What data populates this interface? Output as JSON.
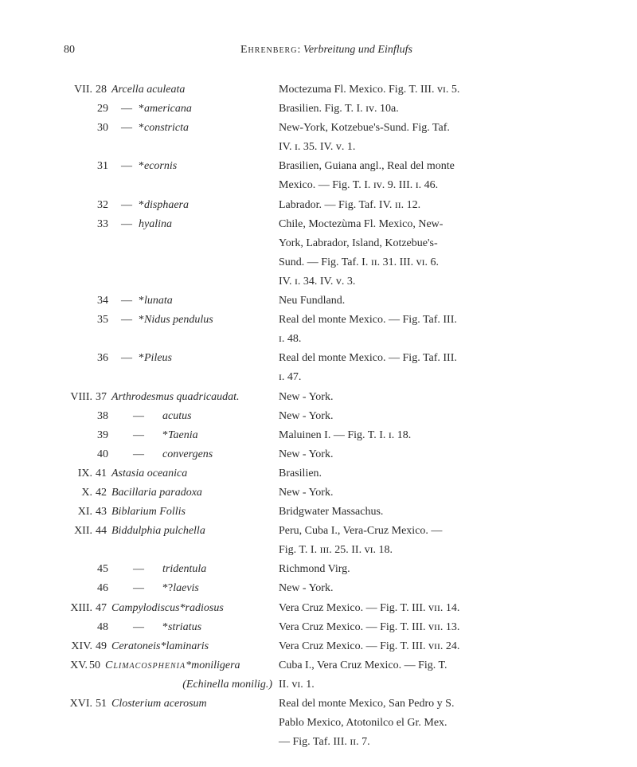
{
  "page_number": "80",
  "header_author": "Ehrenberg",
  "header_title": "Verbreitung und Einflufs",
  "entries": [
    {
      "roman": "VII.",
      "num": "28",
      "name": "Arcella aculeata",
      "desc": "Moctezuma Fl. Mexico. Fig. T. III. ᴠɪ. 5."
    },
    {
      "roman": "",
      "num": "29",
      "dash": "—",
      "pre": "*",
      "name": "americana",
      "desc": "Brasilien. Fig. T. I. ɪᴠ. 10a."
    },
    {
      "roman": "",
      "num": "30",
      "dash": "—",
      "pre": "*",
      "name": "constricta",
      "desc": "New-York, Kotzebue's-Sund. Fig. Taf."
    },
    {
      "cont": "IV. ɪ. 35. IV. ᴠ. 1."
    },
    {
      "roman": "",
      "num": "31",
      "dash": "—",
      "pre": "*",
      "name": "ecornis",
      "desc": "Brasilien, Guiana angl., Real del monte"
    },
    {
      "cont": "Mexico. — Fig. T. I. ɪᴠ. 9. III. ɪ. 46."
    },
    {
      "roman": "",
      "num": "32",
      "dash": "—",
      "pre": "*",
      "name": "disphaera",
      "desc": "Labrador. — Fig. Taf. IV. ɪɪ. 12."
    },
    {
      "roman": "",
      "num": "33",
      "dash": "—",
      "pre": "",
      "name": "hyalina",
      "desc": "Chile, Moctezùma Fl. Mexico, New-"
    },
    {
      "cont": "York, Labrador, Island, Kotzebue's-"
    },
    {
      "cont": "Sund. — Fig. Taf. I. ɪɪ. 31. III. ᴠɪ. 6."
    },
    {
      "cont": "IV. ɪ. 34. IV. ᴠ. 3."
    },
    {
      "roman": "",
      "num": "34",
      "dash": "—",
      "pre": "*",
      "name": "lunata",
      "desc": "Neu Fundland."
    },
    {
      "roman": "",
      "num": "35",
      "dash": "—",
      "pre": "*",
      "name": "Nidus pendulus",
      "desc": "Real del monte Mexico. — Fig. Taf. III."
    },
    {
      "cont": "ɪ. 48."
    },
    {
      "roman": "",
      "num": "36",
      "dash": "—",
      "pre": "*",
      "name": "Pileus",
      "desc": "Real del monte Mexico. — Fig. Taf. III."
    },
    {
      "cont": "ɪ. 47."
    },
    {
      "roman": "VIII.",
      "num": "37",
      "name": "Arthrodesmus quadricaudat.",
      "desc": "New - York.",
      "compact": true
    },
    {
      "roman": "",
      "num": "38",
      "dash2": "—",
      "pre": "",
      "name": "acutus",
      "desc": "New - York."
    },
    {
      "roman": "",
      "num": "39",
      "dash2": "—",
      "pre": "*",
      "name": "Taenia",
      "desc": "Maluinen I. — Fig. T. I. ɪ. 18."
    },
    {
      "roman": "",
      "num": "40",
      "dash2": "—",
      "pre": "",
      "name": "convergens",
      "desc": "New - York."
    },
    {
      "roman": "IX.",
      "num": "41",
      "name": "Astasia oceanica",
      "desc": "Brasilien."
    },
    {
      "roman": "X.",
      "num": "42",
      "name": "Bacillaria paradoxa",
      "desc": "New - York."
    },
    {
      "roman": "XI.",
      "num": "43",
      "name": "Biblarium Follis",
      "desc": "Bridgwater Massachus."
    },
    {
      "roman": "XII.",
      "num": "44",
      "name": "Biddulphia pulchella",
      "desc": "Peru, Cuba I., Vera-Cruz Mexico. —"
    },
    {
      "cont": "Fig. T. I. ɪɪɪ. 25. II. ᴠɪ. 18."
    },
    {
      "roman": "",
      "num": "45",
      "dash2": "—",
      "pre": "",
      "name": "tridentula",
      "desc": "Richmond Virg."
    },
    {
      "roman": "",
      "num": "46",
      "dash2": "—",
      "pre": "*?",
      "name": "laevis",
      "desc": "New - York."
    },
    {
      "roman": "XIII.",
      "num": "47",
      "name": "Campylodiscus*radiosus",
      "desc": "Vera Cruz Mexico. — Fig. T. III. ᴠɪɪ. 14.",
      "compact": true
    },
    {
      "roman": "",
      "num": "48",
      "dash2": "—",
      "pre": "*",
      "name": "striatus",
      "desc": "Vera Cruz Mexico. — Fig. T. III. ᴠɪɪ. 13."
    },
    {
      "roman": "XIV.",
      "num": "49",
      "name": "Ceratoneis*laminaris",
      "desc": "Vera Cruz Mexico. — Fig. T. III. ᴠɪɪ. 24.",
      "compact": true
    },
    {
      "roman": "XV.",
      "num": "50",
      "name_sc": "Climacosphenia",
      "name2": "*moniligera",
      "desc": "Cuba I., Vera Cruz Mexico. — Fig. T.",
      "compact": true
    },
    {
      "cont_paren": "(Echinella monilig.)",
      "cont_rest": "   II. ᴠɪ. 1."
    },
    {
      "roman": "XVI.",
      "num": "51",
      "name": "Closterium acerosum",
      "desc": "Real del monte Mexico, San Pedro y S.",
      "compact": true
    },
    {
      "cont": "Pablo Mexico, Atotonilco el Gr. Mex."
    },
    {
      "cont": "— Fig. Taf. III. ɪɪ. 7."
    }
  ]
}
